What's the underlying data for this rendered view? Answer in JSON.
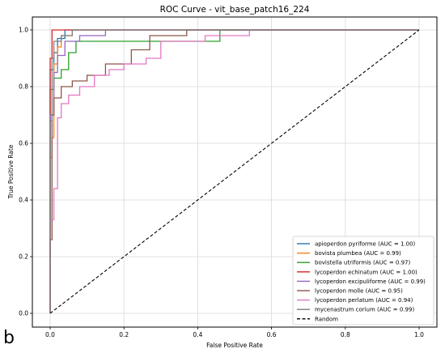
{
  "chart_data": {
    "type": "line",
    "title": "ROC Curve - vit_base_patch16_224",
    "xlabel": "False Positive Rate",
    "ylabel": "True Positive Rate",
    "xlim": [
      0.0,
      1.0
    ],
    "ylim": [
      0.0,
      1.0
    ],
    "xticks": [
      "0.0",
      "0.2",
      "0.4",
      "0.6",
      "0.8",
      "1.0"
    ],
    "yticks": [
      "0.0",
      "0.2",
      "0.4",
      "0.6",
      "0.8",
      "1.0"
    ],
    "grid": true,
    "legend_position": "lower-right",
    "panel_label": "b",
    "series": [
      {
        "name": "apioperdon pyriforme (AUC = 1.00)",
        "color": "#1f77b4",
        "x": [
          0.0,
          0.0,
          0.01,
          0.01,
          0.02,
          0.02,
          0.04,
          0.04,
          1.0
        ],
        "y": [
          0.0,
          0.86,
          0.86,
          0.92,
          0.92,
          0.97,
          0.97,
          1.0,
          1.0
        ]
      },
      {
        "name": "bovista plumbea (AUC = 0.99)",
        "color": "#ff7f0e",
        "x": [
          0.0,
          0.0,
          0.005,
          0.005,
          0.01,
          0.01,
          0.02,
          0.02,
          0.03,
          0.03,
          0.06,
          0.06,
          1.0
        ],
        "y": [
          0.0,
          0.55,
          0.55,
          0.62,
          0.62,
          0.88,
          0.88,
          0.94,
          0.94,
          0.98,
          0.98,
          1.0,
          1.0
        ]
      },
      {
        "name": "bovistella utriformis (AUC = 0.97)",
        "color": "#2ca02c",
        "x": [
          0.0,
          0.0,
          0.01,
          0.01,
          0.03,
          0.03,
          0.05,
          0.05,
          0.07,
          0.07,
          0.46,
          0.46,
          1.0
        ],
        "y": [
          0.0,
          0.79,
          0.79,
          0.83,
          0.83,
          0.86,
          0.86,
          0.92,
          0.92,
          0.96,
          0.96,
          1.0,
          1.0
        ]
      },
      {
        "name": "lycoperdon echinatum (AUC = 1.00)",
        "color": "#d62728",
        "x": [
          0.0,
          0.0,
          0.005,
          0.005,
          1.0
        ],
        "y": [
          0.0,
          0.9,
          0.9,
          1.0,
          1.0
        ]
      },
      {
        "name": "lycoperdon excipuliforme (AUC = 0.99)",
        "color": "#9467bd",
        "x": [
          0.0,
          0.0,
          0.01,
          0.01,
          0.02,
          0.02,
          0.04,
          0.04,
          0.08,
          0.08,
          0.15,
          0.15,
          1.0
        ],
        "y": [
          0.0,
          0.7,
          0.7,
          0.85,
          0.85,
          0.91,
          0.91,
          0.96,
          0.96,
          0.98,
          0.98,
          1.0,
          1.0
        ]
      },
      {
        "name": "lycoperdon molle (AUC = 0.95)",
        "color": "#8c564b",
        "x": [
          0.0,
          0.0,
          0.005,
          0.005,
          0.01,
          0.01,
          0.03,
          0.03,
          0.06,
          0.06,
          0.1,
          0.1,
          0.15,
          0.15,
          0.22,
          0.22,
          0.27,
          0.27,
          0.37,
          0.37,
          1.0
        ],
        "y": [
          0.0,
          0.26,
          0.26,
          0.7,
          0.7,
          0.76,
          0.76,
          0.8,
          0.8,
          0.82,
          0.82,
          0.84,
          0.84,
          0.88,
          0.88,
          0.93,
          0.93,
          0.98,
          0.98,
          1.0,
          1.0
        ]
      },
      {
        "name": "lycoperdon perlatum (AUC = 0.94)",
        "color": "#e377c2",
        "x": [
          0.0,
          0.0,
          0.01,
          0.01,
          0.02,
          0.02,
          0.03,
          0.03,
          0.05,
          0.05,
          0.08,
          0.08,
          0.12,
          0.12,
          0.16,
          0.16,
          0.2,
          0.2,
          0.26,
          0.26,
          0.3,
          0.3,
          0.42,
          0.42,
          0.54,
          0.54,
          1.0
        ],
        "y": [
          0.0,
          0.33,
          0.33,
          0.44,
          0.44,
          0.69,
          0.69,
          0.74,
          0.74,
          0.77,
          0.77,
          0.8,
          0.8,
          0.84,
          0.84,
          0.86,
          0.86,
          0.88,
          0.88,
          0.9,
          0.9,
          0.96,
          0.96,
          0.98,
          0.98,
          1.0,
          1.0
        ]
      },
      {
        "name": "mycenastrum corium (AUC = 0.99)",
        "color": "#7f7f7f",
        "x": [
          0.0,
          0.0,
          0.005,
          0.005,
          0.01,
          0.01,
          0.03,
          0.03,
          0.06,
          0.06,
          1.0
        ],
        "y": [
          0.0,
          0.68,
          0.68,
          0.9,
          0.9,
          0.96,
          0.96,
          0.98,
          0.98,
          1.0,
          1.0
        ]
      },
      {
        "name": "Random",
        "color": "#000000",
        "dash": true,
        "x": [
          0.0,
          1.0
        ],
        "y": [
          0.0,
          1.0
        ]
      }
    ]
  }
}
